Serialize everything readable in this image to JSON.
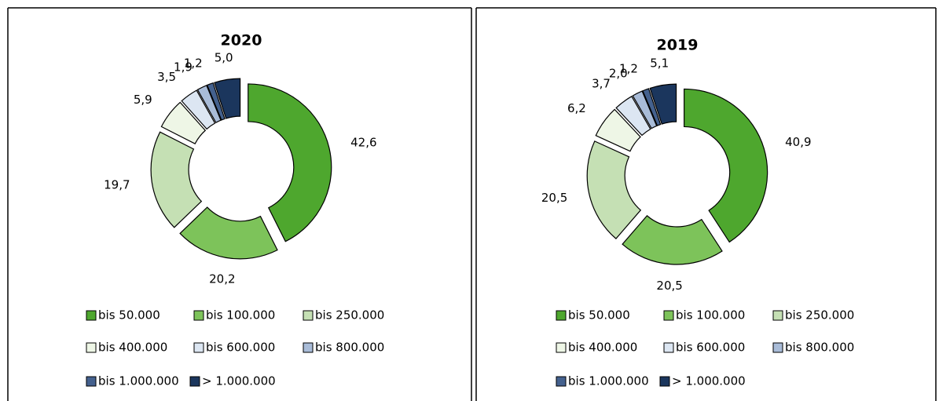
{
  "chart_data": [
    {
      "type": "donut",
      "title": "2020",
      "categories": [
        "bis 50.000",
        "bis 100.000",
        "bis 250.000",
        "bis 400.000",
        "bis 600.000",
        "bis 800.000",
        "bis 1.000.000",
        "> 1.000.000"
      ],
      "values": [
        42.6,
        20.2,
        19.7,
        5.9,
        3.5,
        1.9,
        1.2,
        5.0
      ],
      "value_labels": [
        "42,6",
        "20,2",
        "19,7",
        "5,9",
        "3,5",
        "1,9",
        "1,2",
        "5,0"
      ],
      "colors": [
        "#4ea72e",
        "#7dc35a",
        "#c5e0b4",
        "#eef6e6",
        "#dce6f2",
        "#a9bcd8",
        "#44618e",
        "#1b365d"
      ]
    },
    {
      "type": "donut",
      "title": "2019",
      "categories": [
        "bis 50.000",
        "bis 100.000",
        "bis 250.000",
        "bis 400.000",
        "bis 600.000",
        "bis 800.000",
        "bis 1.000.000",
        "> 1.000.000"
      ],
      "values": [
        40.9,
        20.5,
        20.5,
        6.2,
        3.7,
        2.0,
        1.2,
        5.1
      ],
      "value_labels": [
        "40,9",
        "20,5",
        "20,5",
        "6,2",
        "3,7",
        "2,0",
        "1,2",
        "5,1"
      ],
      "colors": [
        "#4ea72e",
        "#7dc35a",
        "#c5e0b4",
        "#eef6e6",
        "#dce6f2",
        "#a9bcd8",
        "#44618e",
        "#1b365d"
      ]
    }
  ]
}
